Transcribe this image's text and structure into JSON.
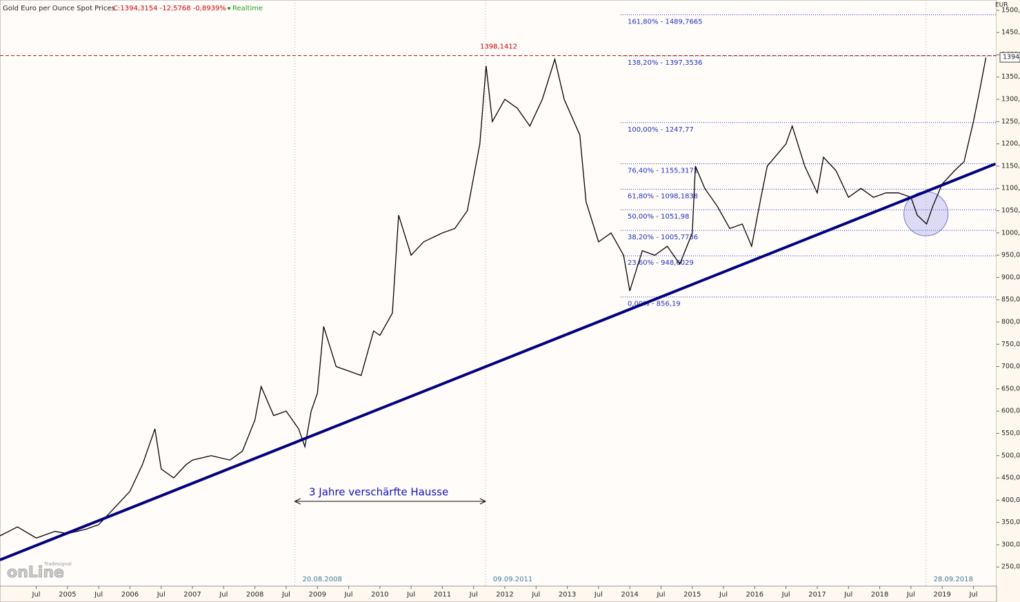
{
  "chart_data": {
    "type": "line",
    "title": "Gold Euro per Ounce Spot Prices",
    "quote": "C:1394,3154 -12,5768 -0,8939%",
    "status": "Realtime",
    "unit": "EUR",
    "x": [
      2003.92,
      2004.2,
      2004.5,
      2004.8,
      2005.0,
      2005.3,
      2005.5,
      2005.8,
      2006.0,
      2006.2,
      2006.4,
      2006.5,
      2006.7,
      2006.9,
      2007.0,
      2007.3,
      2007.6,
      2007.8,
      2008.0,
      2008.1,
      2008.3,
      2008.5,
      2008.7,
      2008.8,
      2008.9,
      2009.0,
      2009.1,
      2009.3,
      2009.5,
      2009.7,
      2009.9,
      2010.0,
      2010.2,
      2010.3,
      2010.5,
      2010.7,
      2011.0,
      2011.2,
      2011.4,
      2011.6,
      2011.7,
      2011.8,
      2012.0,
      2012.2,
      2012.4,
      2012.6,
      2012.8,
      2012.95,
      2013.2,
      2013.3,
      2013.5,
      2013.7,
      2013.9,
      2014.0,
      2014.2,
      2014.4,
      2014.6,
      2014.8,
      2015.0,
      2015.05,
      2015.2,
      2015.4,
      2015.6,
      2015.8,
      2015.95,
      2016.1,
      2016.2,
      2016.5,
      2016.6,
      2016.8,
      2017.0,
      2017.1,
      2017.3,
      2017.5,
      2017.7,
      2017.9,
      2018.1,
      2018.3,
      2018.5,
      2018.6,
      2018.75,
      2018.85,
      2019.0,
      2019.2,
      2019.35,
      2019.5,
      2019.6,
      2019.7
    ],
    "series": [
      {
        "color": "#000000",
        "values": [
          320,
          340,
          315,
          330,
          325,
          335,
          345,
          390,
          420,
          480,
          560,
          470,
          450,
          480,
          490,
          500,
          490,
          510,
          580,
          655,
          590,
          600,
          560,
          520,
          600,
          640,
          790,
          700,
          690,
          680,
          780,
          770,
          820,
          1040,
          950,
          980,
          1000,
          1010,
          1050,
          1200,
          1375,
          1250,
          1300,
          1280,
          1240,
          1300,
          1390,
          1300,
          1220,
          1070,
          980,
          1000,
          950,
          870,
          960,
          950,
          970,
          930,
          1000,
          1150,
          1100,
          1060,
          1010,
          1020,
          970,
          1080,
          1150,
          1200,
          1240,
          1150,
          1090,
          1170,
          1140,
          1080,
          1100,
          1080,
          1090,
          1090,
          1080,
          1040,
          1020,
          1060,
          1110,
          1140,
          1160,
          1250,
          1320,
          1394
        ]
      }
    ],
    "trendline": {
      "color": "#000080",
      "x": [
        2003.92,
        2019.85
      ],
      "values": [
        266,
        1155
      ]
    },
    "resistance": {
      "value": 1398.1412,
      "label": "1398,1412",
      "color": "#cc0000"
    },
    "fib_levels": [
      {
        "value": 1489.7665,
        "label": "161,80% - 1489,7665"
      },
      {
        "value": 1397.3536,
        "label": "138,20% - 1397,3536"
      },
      {
        "value": 1247.77,
        "label": "100,00% - 1247,77"
      },
      {
        "value": 1155.3171,
        "label": "76,40% - 1155,3171"
      },
      {
        "value": 1098.1838,
        "label": "61,80% - 1098,1838"
      },
      {
        "value": 1051.98,
        "label": "50,00% - 1051,98"
      },
      {
        "value": 1005.7736,
        "label": "38,20% - 1005,7736"
      },
      {
        "value": 948.6029,
        "label": "23,60% - 948,6029"
      },
      {
        "value": 856.19,
        "label": "0,00% - 856,19"
      }
    ],
    "events": [
      {
        "x": 2008.64,
        "label": "20.08.2008"
      },
      {
        "x": 2011.69,
        "label": "09.09.2011"
      },
      {
        "x": 2018.74,
        "label": "28.09.2018"
      }
    ],
    "annotation": "3 Jahre verschärfte Hausse",
    "last": {
      "value": 1394.3154,
      "label": "1394"
    },
    "logo": {
      "small": "Tradesignal",
      "big": "onLine"
    },
    "xlim": [
      2003.92,
      2019.87
    ],
    "ylim": [
      207,
      1523
    ],
    "xticks": [
      {
        "value": 2004.5,
        "label": "Jul"
      },
      2005,
      {
        "value": 2005.5,
        "label": "Jul"
      },
      2006,
      {
        "value": 2006.5,
        "label": "Jul"
      },
      2007,
      {
        "value": 2007.5,
        "label": "Jul"
      },
      2008,
      {
        "value": 2008.5,
        "label": "Jul"
      },
      2009,
      {
        "value": 2009.5,
        "label": "Jul"
      },
      2010,
      {
        "value": 2010.5,
        "label": "Jul"
      },
      2011,
      {
        "value": 2011.5,
        "label": "Jul"
      },
      2012,
      {
        "value": 2012.5,
        "label": "Jul"
      },
      2013,
      {
        "value": 2013.5,
        "label": "Jul"
      },
      2014,
      {
        "value": 2014.5,
        "label": "Jul"
      },
      2015,
      {
        "value": 2015.5,
        "label": "Jul"
      },
      2016,
      {
        "value": 2016.5,
        "label": "Jul"
      },
      2017,
      {
        "value": 2017.5,
        "label": "Jul"
      },
      2018,
      {
        "value": 2018.5,
        "label": "Jul"
      },
      2019,
      {
        "value": 2019.5,
        "label": "Jul"
      }
    ],
    "yticks": [
      {
        "value": 250,
        "label": "250,0"
      },
      {
        "value": 300,
        "label": "300,0"
      },
      {
        "value": 350,
        "label": "350,0"
      },
      {
        "value": 400,
        "label": "400,0"
      },
      {
        "value": 450,
        "label": "450,0"
      },
      {
        "value": 500,
        "label": "500,0"
      },
      {
        "value": 550,
        "label": "550,0"
      },
      {
        "value": 600,
        "label": "600,0"
      },
      {
        "value": 650,
        "label": "650,0"
      },
      {
        "value": 700,
        "label": "700,0"
      },
      {
        "value": 750,
        "label": "750,0"
      },
      {
        "value": 800,
        "label": "800,0"
      },
      {
        "value": 850,
        "label": "850,0"
      },
      {
        "value": 900,
        "label": "900,0"
      },
      {
        "value": 950,
        "label": "950,0"
      },
      {
        "value": 1000,
        "label": "1000,0"
      },
      {
        "value": 1050,
        "label": "1050,0"
      },
      {
        "value": 1100,
        "label": "1100,0"
      },
      {
        "value": 1150,
        "label": "1150,0"
      },
      {
        "value": 1200,
        "label": "1200,0"
      },
      {
        "value": 1250,
        "label": "1250,0"
      },
      {
        "value": 1300,
        "label": "1300,0"
      },
      {
        "value": 1350,
        "label": "1350,0"
      },
      {
        "value": 1400,
        "label": "1400,0"
      },
      {
        "value": 1450,
        "label": "1450,0"
      },
      {
        "value": 1500,
        "label": "1500,0"
      }
    ]
  }
}
